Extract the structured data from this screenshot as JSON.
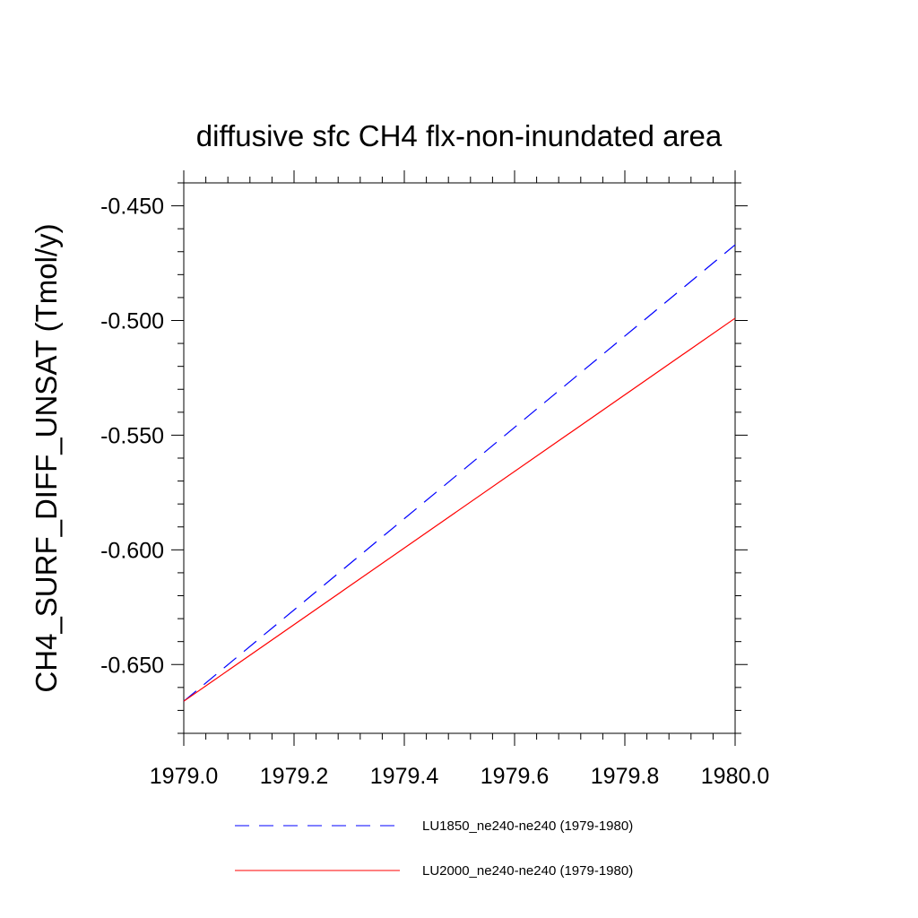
{
  "chart_data": {
    "type": "line",
    "title": "diffusive sfc CH4 flx-non-inundated area",
    "xlabel": "",
    "ylabel": "CH4_SURF_DIFF_UNSAT  (Tmol/y)",
    "xlim": [
      1979.0,
      1980.0
    ],
    "ylim": [
      -0.68,
      -0.44
    ],
    "xticks": [
      "1979.0",
      "1979.2",
      "1979.4",
      "1979.6",
      "1979.8",
      "1980.0"
    ],
    "xtick_values": [
      1979.0,
      1979.2,
      1979.4,
      1979.6,
      1979.8,
      1980.0
    ],
    "yticks": [
      "-0.450",
      "-0.500",
      "-0.550",
      "-0.600",
      "-0.650"
    ],
    "ytick_values": [
      -0.45,
      -0.5,
      -0.55,
      -0.6,
      -0.65
    ],
    "grid": false,
    "legend_position": "bottom",
    "series": [
      {
        "name": "LU1850_ne240-ne240 (1979-1980)",
        "color": "#0000ff",
        "style": "dashed",
        "x": [
          1979.0,
          1980.0
        ],
        "y": [
          -0.666,
          -0.467
        ]
      },
      {
        "name": "LU2000_ne240-ne240 (1979-1980)",
        "color": "#ff0000",
        "style": "solid",
        "x": [
          1979.0,
          1980.0
        ],
        "y": [
          -0.666,
          -0.499
        ]
      }
    ]
  }
}
